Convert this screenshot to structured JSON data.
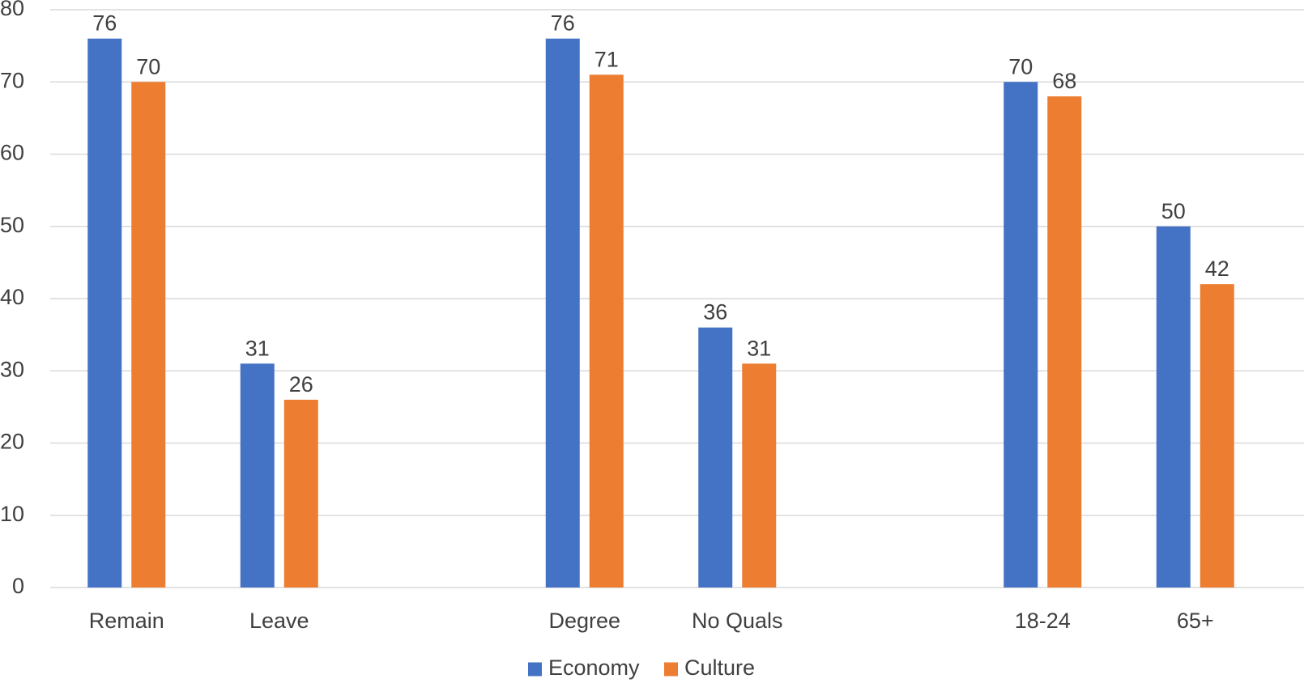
{
  "chart_data": {
    "type": "bar",
    "title": "",
    "xlabel": "",
    "ylabel": "",
    "ylim": [
      0,
      80
    ],
    "ytick_step": 10,
    "grid": true,
    "legend_position": "bottom",
    "categories": [
      "Remain",
      "Leave",
      "",
      "Degree",
      "No Quals",
      "",
      "18-24",
      "65+"
    ],
    "series": [
      {
        "name": "Economy",
        "color": "#4472C4",
        "values": [
          76,
          31,
          null,
          76,
          36,
          null,
          70,
          50
        ]
      },
      {
        "name": "Culture",
        "color": "#ED7D31",
        "values": [
          70,
          26,
          null,
          71,
          31,
          null,
          68,
          42
        ]
      }
    ]
  }
}
